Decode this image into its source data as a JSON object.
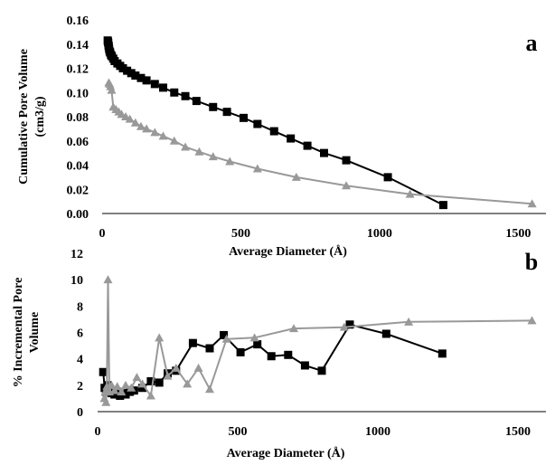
{
  "chart_data": [
    {
      "type": "line",
      "panel_label": "a",
      "xlabel": "Average Diameter (Å)",
      "ylabel_line1": "Cumulative Pore Volume",
      "ylabel_line2": "(cm3/g)",
      "xlim": [
        0,
        1600
      ],
      "ylim": [
        0,
        0.16
      ],
      "x_ticks": [
        "0",
        "500",
        "1000",
        "1500"
      ],
      "y_ticks": [
        "0.00",
        "0.02",
        "0.04",
        "0.06",
        "0.08",
        "0.10",
        "0.12",
        "0.14",
        "0.16"
      ],
      "series": [
        {
          "marker": "square",
          "color": "#000000",
          "x": [
            20,
            21,
            22,
            23,
            24,
            25,
            27,
            29,
            32,
            35,
            40,
            45,
            55,
            65,
            75,
            90,
            105,
            120,
            140,
            160,
            190,
            220,
            260,
            300,
            340,
            400,
            450,
            510,
            560,
            620,
            680,
            740,
            800,
            880,
            1030,
            1230
          ],
          "y": [
            0.143,
            0.142,
            0.141,
            0.139,
            0.138,
            0.136,
            0.134,
            0.133,
            0.131,
            0.13,
            0.128,
            0.126,
            0.124,
            0.122,
            0.12,
            0.118,
            0.116,
            0.114,
            0.112,
            0.11,
            0.107,
            0.104,
            0.1,
            0.097,
            0.093,
            0.088,
            0.084,
            0.079,
            0.074,
            0.068,
            0.062,
            0.056,
            0.05,
            0.044,
            0.03,
            0.007
          ]
        },
        {
          "marker": "triangle",
          "color": "#999999",
          "x": [
            24,
            27,
            30,
            34,
            40,
            50,
            60,
            70,
            85,
            100,
            120,
            140,
            160,
            190,
            220,
            260,
            300,
            350,
            400,
            460,
            560,
            700,
            880,
            1110,
            1550
          ],
          "y": [
            0.108,
            0.107,
            0.105,
            0.102,
            0.088,
            0.086,
            0.084,
            0.082,
            0.08,
            0.078,
            0.075,
            0.072,
            0.07,
            0.067,
            0.064,
            0.06,
            0.055,
            0.051,
            0.047,
            0.043,
            0.037,
            0.03,
            0.023,
            0.016,
            0.008
          ]
        }
      ]
    },
    {
      "type": "line",
      "panel_label": "b",
      "xlabel": "Average Diameter (Å)",
      "ylabel_line1": "% Incremental Pore",
      "ylabel_line2": "Volume",
      "xlim": [
        0,
        1600
      ],
      "ylim": [
        0,
        12
      ],
      "x_ticks": [
        "0",
        "500",
        "1000",
        "1500"
      ],
      "y_ticks": [
        "0",
        "2",
        "4",
        "6",
        "8",
        "10",
        "12"
      ],
      "series": [
        {
          "marker": "square",
          "color": "#000000",
          "x": [
            20,
            25,
            30,
            35,
            40,
            50,
            60,
            70,
            80,
            90,
            100,
            115,
            130,
            160,
            190,
            220,
            250,
            280,
            340,
            400,
            450,
            510,
            570,
            620,
            680,
            740,
            800,
            900,
            1030,
            1230
          ],
          "y": [
            3.0,
            1.8,
            1.5,
            2.0,
            1.6,
            1.4,
            1.3,
            1.5,
            1.2,
            1.4,
            1.3,
            1.5,
            1.6,
            1.8,
            2.3,
            2.2,
            2.9,
            3.1,
            5.2,
            4.8,
            5.8,
            4.5,
            5.1,
            4.2,
            4.3,
            3.5,
            3.1,
            6.6,
            5.9,
            4.4
          ]
        },
        {
          "marker": "triangle",
          "color": "#999999",
          "x": [
            24,
            27,
            30,
            33,
            37,
            42,
            50,
            60,
            70,
            85,
            100,
            120,
            140,
            160,
            190,
            220,
            250,
            280,
            320,
            360,
            400,
            460,
            560,
            700,
            880,
            1110,
            1550
          ],
          "y": [
            1.0,
            1.5,
            0.7,
            1.9,
            10.0,
            1.5,
            2.0,
            1.6,
            1.9,
            1.5,
            2.0,
            1.8,
            2.6,
            2.1,
            1.2,
            5.6,
            2.7,
            3.3,
            2.1,
            3.3,
            1.7,
            5.5,
            5.6,
            6.3,
            6.4,
            6.8,
            6.9
          ]
        }
      ]
    }
  ]
}
